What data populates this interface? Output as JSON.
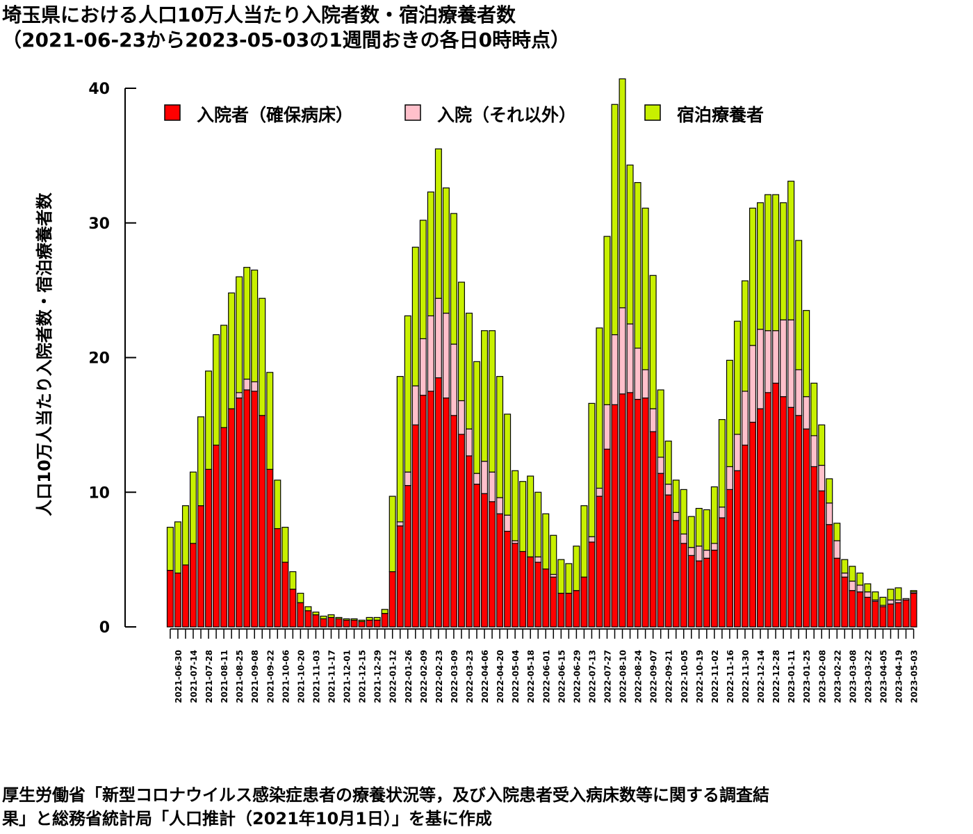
{
  "title": {
    "line1": "埼玉県における人口10万人当たり入院者数・宿泊療養者数",
    "line2": "（2021-06-23から2023-05-03の1週間おきの各日0時時点）"
  },
  "source": {
    "line1": "厚生労働省「新型コロナウイルス感染症患者の療養状況等，及び入院患者受入病床数等に関する調査結",
    "line2": "果」と総務省統計局「人口推計（2021年10月1日）」を基に作成"
  },
  "colors": {
    "hosp_secured": "#ff0000",
    "hosp_other": "#ffc0cb",
    "hotel": "#c8f000"
  },
  "chart_data": {
    "type": "bar",
    "stacked": true,
    "ylabel": "人口10万人当たり入院者数・宿泊療養者数",
    "ylim": [
      0,
      40
    ],
    "yticks": [
      0,
      10,
      20,
      30,
      40
    ],
    "legend_position": "top",
    "grid": false,
    "dates": [
      "2021-06-23",
      "2021-06-30",
      "2021-07-07",
      "2021-07-14",
      "2021-07-21",
      "2021-07-28",
      "2021-08-04",
      "2021-08-11",
      "2021-08-18",
      "2021-08-25",
      "2021-09-01",
      "2021-09-08",
      "2021-09-15",
      "2021-09-22",
      "2021-09-29",
      "2021-10-06",
      "2021-10-13",
      "2021-10-20",
      "2021-10-27",
      "2021-11-03",
      "2021-11-10",
      "2021-11-17",
      "2021-11-24",
      "2021-12-01",
      "2021-12-08",
      "2021-12-15",
      "2021-12-22",
      "2021-12-29",
      "2022-01-05",
      "2022-01-12",
      "2022-01-19",
      "2022-01-26",
      "2022-02-02",
      "2022-02-09",
      "2022-02-16",
      "2022-02-23",
      "2022-03-02",
      "2022-03-09",
      "2022-03-16",
      "2022-03-23",
      "2022-03-30",
      "2022-04-06",
      "2022-04-13",
      "2022-04-20",
      "2022-04-27",
      "2022-05-04",
      "2022-05-11",
      "2022-05-18",
      "2022-05-25",
      "2022-06-01",
      "2022-06-08",
      "2022-06-15",
      "2022-06-22",
      "2022-06-29",
      "2022-07-06",
      "2022-07-13",
      "2022-07-20",
      "2022-07-27",
      "2022-08-03",
      "2022-08-10",
      "2022-08-17",
      "2022-08-24",
      "2022-08-31",
      "2022-09-07",
      "2022-09-14",
      "2022-09-21",
      "2022-09-28",
      "2022-10-05",
      "2022-10-12",
      "2022-10-19",
      "2022-10-26",
      "2022-11-02",
      "2022-11-09",
      "2022-11-16",
      "2022-11-23",
      "2022-11-30",
      "2022-12-07",
      "2022-12-14",
      "2022-12-21",
      "2022-12-28",
      "2023-01-04",
      "2023-01-11",
      "2023-01-18",
      "2023-01-25",
      "2023-02-01",
      "2023-02-08",
      "2023-02-15",
      "2023-02-22",
      "2023-03-01",
      "2023-03-08",
      "2023-03-15",
      "2023-03-22",
      "2023-03-29",
      "2023-04-05",
      "2023-04-12",
      "2023-04-19",
      "2023-04-26",
      "2023-05-03"
    ],
    "tick_labels": [
      "2021-06-30",
      "2021-07-14",
      "2021-07-28",
      "2021-08-11",
      "2021-08-25",
      "2021-09-08",
      "2021-09-22",
      "2021-10-06",
      "2021-10-20",
      "2021-11-03",
      "2021-11-17",
      "2021-12-01",
      "2021-12-15",
      "2021-12-29",
      "2022-01-12",
      "2022-01-26",
      "2022-02-09",
      "2022-02-23",
      "2022-03-09",
      "2022-03-23",
      "2022-04-06",
      "2022-04-20",
      "2022-05-04",
      "2022-05-18",
      "2022-06-01",
      "2022-06-15",
      "2022-06-29",
      "2022-07-13",
      "2022-07-27",
      "2022-08-10",
      "2022-08-24",
      "2022-09-07",
      "2022-09-21",
      "2022-10-05",
      "2022-10-19",
      "2022-11-02",
      "2022-11-16",
      "2022-11-30",
      "2022-12-14",
      "2022-12-28",
      "2023-01-11",
      "2023-01-25",
      "2023-02-08",
      "2023-02-22",
      "2023-03-08",
      "2023-03-22",
      "2023-04-05",
      "2023-04-19",
      "2023-05-03"
    ],
    "series": [
      {
        "name": "入院者（確保病床）",
        "color": "#ff0000",
        "values": [
          4.2,
          4.0,
          4.6,
          6.2,
          9.0,
          11.7,
          13.5,
          14.8,
          16.2,
          17.0,
          17.6,
          17.5,
          15.7,
          11.7,
          7.3,
          4.8,
          2.8,
          1.8,
          1.2,
          0.9,
          0.6,
          0.7,
          0.6,
          0.5,
          0.5,
          0.4,
          0.5,
          0.5,
          1.0,
          4.1,
          7.5,
          10.5,
          15.0,
          17.2,
          17.5,
          18.5,
          17.0,
          15.7,
          14.3,
          12.7,
          10.6,
          9.9,
          9.3,
          8.4,
          7.1,
          6.2,
          5.6,
          5.2,
          4.8,
          4.3,
          3.7,
          2.5,
          2.5,
          2.7,
          3.7,
          6.3,
          9.7,
          13.2,
          16.5,
          17.3,
          17.4,
          16.9,
          17.0,
          14.5,
          11.4,
          9.8,
          7.9,
          6.2,
          5.3,
          4.9,
          5.1,
          5.7,
          8.1,
          10.2,
          11.6,
          13.5,
          15.2,
          16.2,
          17.4,
          18.1,
          17.1,
          16.3,
          15.7,
          14.7,
          11.9,
          10.1,
          7.6,
          5.1,
          3.7,
          2.7,
          2.6,
          2.2,
          1.9,
          1.5,
          1.7,
          1.8,
          2.0,
          2.5
        ]
      },
      {
        "name": "入院（それ以外）",
        "color": "#ffc0cb",
        "values": [
          0,
          0,
          0,
          0,
          0,
          0,
          0,
          0,
          0,
          0.4,
          0.8,
          0.7,
          0,
          0,
          0,
          0,
          0,
          0,
          0,
          0,
          0,
          0,
          0,
          0,
          0,
          0,
          0,
          0,
          0,
          0,
          0.3,
          1.0,
          2.9,
          4.2,
          5.6,
          5.9,
          6.3,
          5.3,
          2.5,
          2.0,
          0.8,
          2.4,
          2.2,
          1.2,
          1.2,
          0.2,
          0,
          0,
          0.4,
          0,
          0.2,
          0,
          0,
          0,
          0,
          0.4,
          0.6,
          3.3,
          5.2,
          6.4,
          5.1,
          3.8,
          2.1,
          1.7,
          1.2,
          0.8,
          0.6,
          0.7,
          0.6,
          1.1,
          0.6,
          0.5,
          0.8,
          1.7,
          2.7,
          4.0,
          5.7,
          5.9,
          4.6,
          3.9,
          5.7,
          6.5,
          3.4,
          2.4,
          2.3,
          1.9,
          1.6,
          1.3,
          0.3,
          0.7,
          0.5,
          0.4,
          0.1,
          0.1,
          0.3,
          0.2,
          0.1,
          0.1
        ]
      },
      {
        "name": "宿泊療養者",
        "color": "#c8f000",
        "values": [
          3.2,
          3.8,
          4.4,
          5.3,
          6.6,
          7.3,
          8.2,
          7.6,
          8.6,
          8.6,
          8.3,
          8.3,
          8.7,
          7.2,
          3.6,
          2.6,
          1.3,
          0.7,
          0.3,
          0.2,
          0.2,
          0.2,
          0.1,
          0.1,
          0.1,
          0.1,
          0.2,
          0.2,
          0.3,
          5.6,
          10.8,
          11.6,
          10.3,
          8.8,
          9.2,
          11.1,
          9.3,
          9.7,
          8.8,
          8.6,
          8.3,
          9.7,
          10.5,
          9.0,
          7.5,
          5.2,
          5.2,
          6.0,
          4.8,
          4.1,
          2.9,
          2.5,
          2.2,
          3.3,
          5.3,
          9.9,
          11.9,
          12.5,
          17.1,
          17.0,
          11.8,
          12.3,
          12.0,
          9.9,
          5.0,
          3.2,
          2.4,
          3.3,
          2.3,
          2.8,
          3.0,
          4.2,
          6.5,
          7.9,
          8.4,
          8.2,
          10.2,
          9.4,
          10.1,
          10.1,
          8.7,
          10.3,
          9.6,
          6.4,
          3.9,
          3.0,
          1.8,
          1.3,
          1.0,
          1.1,
          0.9,
          0.6,
          0.6,
          0.6,
          0.8,
          0.9,
          0.0,
          0.1
        ]
      }
    ]
  }
}
